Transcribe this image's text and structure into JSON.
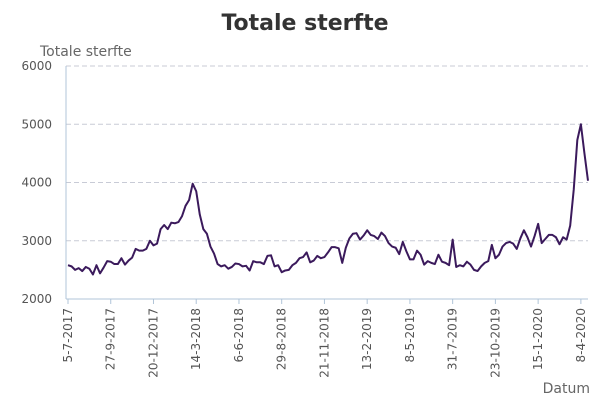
{
  "chart_data": {
    "type": "line",
    "title": "Totale sterfte",
    "ylabel": "Totale sterfte",
    "xlabel": "Datum",
    "ylim": [
      2000,
      6000
    ],
    "yticks": [
      2000,
      3000,
      4000,
      5000,
      6000
    ],
    "grid": "horizontal",
    "legend": "none",
    "colors": {
      "line": "#3b1a5c",
      "grid": "#c8cbd6",
      "axis": "#b0c4d8",
      "title": "#333333",
      "text": "#666666"
    },
    "xtick_labels": [
      "5-7-2017",
      "27-9-2017",
      "20-12-2017",
      "14-3-2018",
      "6-6-2018",
      "29-8-2018",
      "21-11-2018",
      "13-2-2019",
      "8-5-2019",
      "31-7-2019",
      "23-10-2019",
      "15-1-2020",
      "8-4-2020"
    ],
    "xtick_weeks": [
      0,
      12,
      24,
      36,
      48,
      60,
      72,
      84,
      96,
      108,
      120,
      132,
      144
    ],
    "series": [
      {
        "values": [
          2580,
          2560,
          2500,
          2530,
          2480,
          2550,
          2520,
          2420,
          2580,
          2440,
          2540,
          2650,
          2640,
          2600,
          2600,
          2700,
          2590,
          2660,
          2710,
          2860,
          2830,
          2830,
          2860,
          3000,
          2920,
          2950,
          3200,
          3270,
          3200,
          3310,
          3300,
          3320,
          3420,
          3600,
          3700,
          3980,
          3850,
          3450,
          3200,
          3120,
          2900,
          2780,
          2600,
          2560,
          2580,
          2520,
          2550,
          2610,
          2600,
          2560,
          2570,
          2490,
          2650,
          2630,
          2630,
          2600,
          2740,
          2750,
          2560,
          2580,
          2460,
          2490,
          2500,
          2580,
          2620,
          2700,
          2720,
          2800,
          2630,
          2660,
          2740,
          2700,
          2720,
          2800,
          2890,
          2890,
          2870,
          2620,
          2880,
          3040,
          3120,
          3130,
          3020,
          3090,
          3180,
          3100,
          3080,
          3030,
          3140,
          3080,
          2960,
          2900,
          2880,
          2770,
          2980,
          2820,
          2680,
          2680,
          2830,
          2760,
          2590,
          2650,
          2620,
          2600,
          2760,
          2640,
          2620,
          2580,
          3020,
          2550,
          2580,
          2560,
          2640,
          2590,
          2500,
          2480,
          2560,
          2620,
          2650,
          2930,
          2700,
          2760,
          2900,
          2960,
          2980,
          2950,
          2860,
          3040,
          3180,
          3060,
          2900,
          3080,
          3290,
          2960,
          3030,
          3100,
          3100,
          3060,
          2940,
          3060,
          3020,
          3260,
          3880,
          4730,
          5000,
          4500,
          4030
        ]
      }
    ]
  }
}
